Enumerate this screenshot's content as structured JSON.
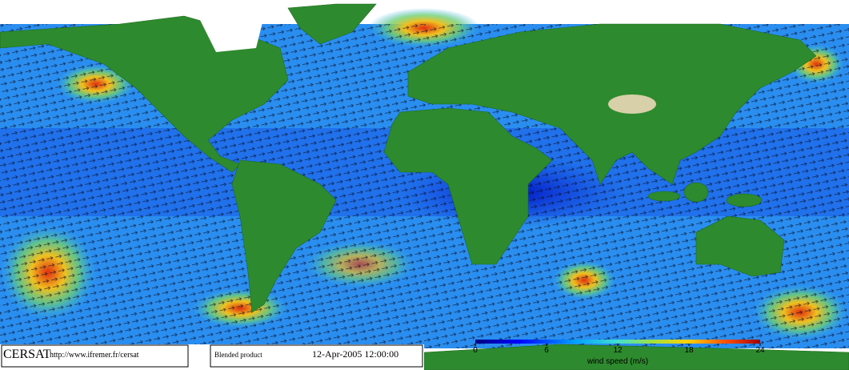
{
  "footer": {
    "agency": "CERSAT",
    "url": "http://www.ifremer.fr/cersat",
    "product": "Blended product",
    "date": "12-Apr-2005 12:00:00"
  },
  "colorbar": {
    "lim": [
      0,
      24
    ],
    "ticks": [
      0,
      6,
      12,
      18,
      24
    ],
    "label": "wind speed (m/s)"
  }
}
